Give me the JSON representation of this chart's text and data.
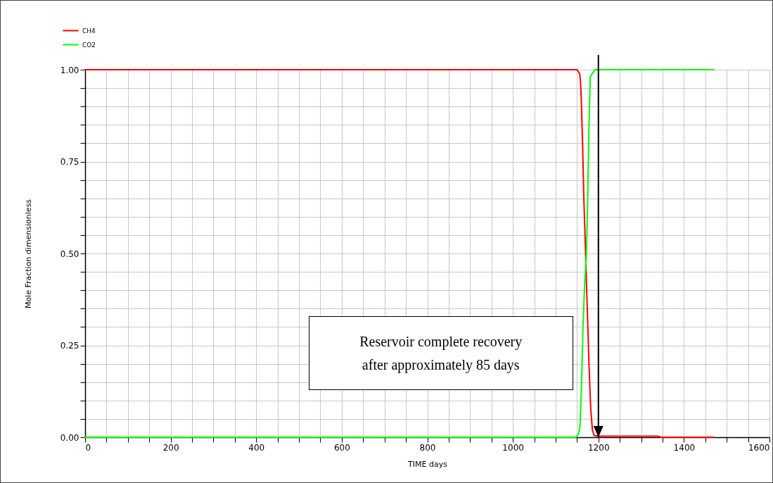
{
  "chart_data": {
    "type": "line",
    "xlabel": "TIME   days",
    "ylabel": "Mole Fraction   dimensionless",
    "xlim": [
      0,
      1600
    ],
    "ylim": [
      0,
      1
    ],
    "xticks": [
      0,
      {
        "value": 50,
        "label": null
      },
      {
        "value": 100,
        "label": null
      },
      {
        "value": 150,
        "label": null
      },
      200,
      {
        "value": 250,
        "label": null
      },
      {
        "value": 300,
        "label": null
      },
      {
        "value": 350,
        "label": null
      },
      400,
      {
        "value": 450,
        "label": null
      },
      {
        "value": 500,
        "label": null
      },
      {
        "value": 550,
        "label": null
      },
      600,
      {
        "value": 650,
        "label": null
      },
      {
        "value": 700,
        "label": null
      },
      {
        "value": 750,
        "label": null
      },
      800,
      {
        "value": 850,
        "label": null
      },
      {
        "value": 900,
        "label": null
      },
      {
        "value": 950,
        "label": null
      },
      1000,
      {
        "value": 1050,
        "label": null
      },
      {
        "value": 1100,
        "label": null
      },
      {
        "value": 1150,
        "label": null
      },
      1200,
      {
        "value": 1250,
        "label": null
      },
      {
        "value": 1300,
        "label": null
      },
      {
        "value": 1350,
        "label": null
      },
      1400,
      {
        "value": 1450,
        "label": null
      },
      {
        "value": 1500,
        "label": null
      },
      {
        "value": 1550,
        "label": null
      },
      1600
    ],
    "yticks": [
      {
        "value": 0,
        "label": "0.00"
      },
      {
        "value": 0.05,
        "label": null
      },
      {
        "value": 0.1,
        "label": null
      },
      {
        "value": 0.15,
        "label": null
      },
      {
        "value": 0.2,
        "label": null
      },
      {
        "value": 0.25,
        "label": "0.25"
      },
      {
        "value": 0.3,
        "label": null
      },
      {
        "value": 0.35,
        "label": null
      },
      {
        "value": 0.4,
        "label": null
      },
      {
        "value": 0.45,
        "label": null
      },
      {
        "value": 0.5,
        "label": "0.50"
      },
      {
        "value": 0.55,
        "label": null
      },
      {
        "value": 0.6,
        "label": null
      },
      {
        "value": 0.65,
        "label": null
      },
      {
        "value": 0.7,
        "label": null
      },
      {
        "value": 0.75,
        "label": "0.75"
      },
      {
        "value": 0.8,
        "label": null
      },
      {
        "value": 0.85,
        "label": null
      },
      {
        "value": 0.9,
        "label": null
      },
      {
        "value": 0.95,
        "label": null
      },
      {
        "value": 1,
        "label": "1.00"
      }
    ],
    "grid": true,
    "legend": "top left",
    "marker": "none",
    "line_style": "solid",
    "series": [
      {
        "name": "CH4",
        "color": "#ff0000",
        "x": [
          0,
          1150,
          1156,
          1158,
          1160,
          1163,
          1166,
          1170,
          1174,
          1178,
          1182,
          1186,
          1190,
          1200,
          1340,
          1345,
          1470
        ],
        "values": [
          1,
          1,
          0.99,
          0.97,
          0.92,
          0.8,
          0.65,
          0.5,
          0.35,
          0.2,
          0.08,
          0.02,
          0.005,
          0.003,
          0.003,
          0,
          0
        ]
      },
      {
        "name": "CO2",
        "color": "#00ff00",
        "x": [
          0,
          1148,
          1154,
          1157,
          1160,
          1164,
          1168,
          1172,
          1175,
          1178,
          1181,
          1186,
          1192,
          1470
        ],
        "values": [
          0,
          0,
          0.01,
          0.03,
          0.12,
          0.3,
          0.42,
          0.5,
          0.65,
          0.85,
          0.98,
          0.99,
          1,
          1
        ]
      }
    ],
    "ref_lines": [
      {
        "axis": "x",
        "value": 1200,
        "color": "#000000"
      }
    ],
    "annotations": [
      "Reservoir complete recovery\nafter approximately 85 days"
    ]
  }
}
